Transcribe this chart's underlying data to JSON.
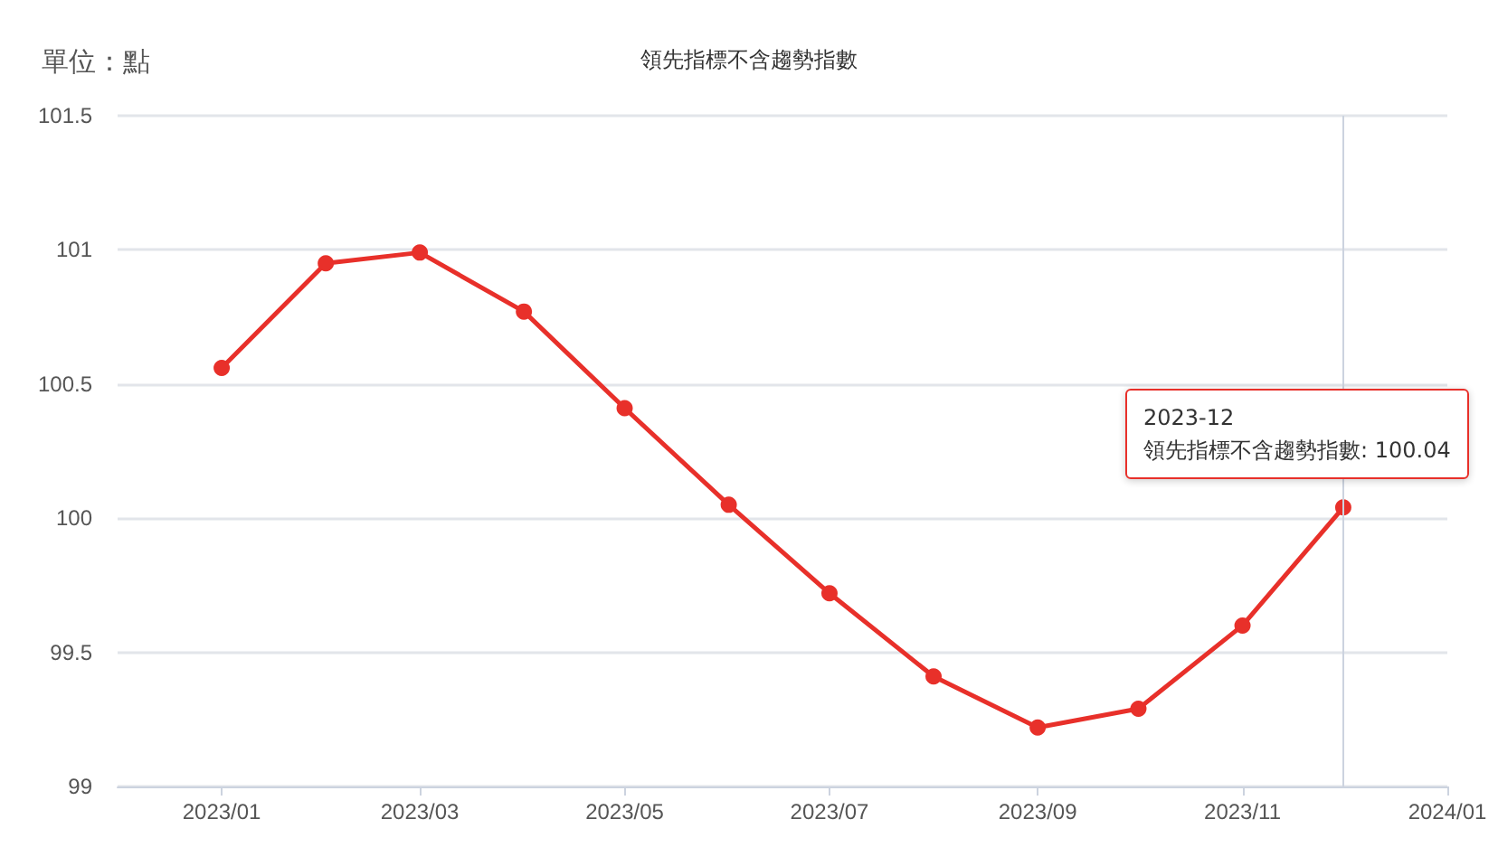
{
  "chart_data": {
    "type": "line",
    "title": "領先指標不含趨勢指數",
    "ylabel": "單位：點",
    "x": [
      "2023-01",
      "2023-02",
      "2023-03",
      "2023-04",
      "2023-05",
      "2023-06",
      "2023-07",
      "2023-08",
      "2023-09",
      "2023-10",
      "2023-11",
      "2023-12"
    ],
    "series": [
      {
        "color": "#e8302a",
        "values": [
          100.56,
          100.95,
          100.99,
          100.77,
          100.41,
          100.05,
          99.72,
          99.41,
          99.22,
          99.29,
          99.6,
          100.04
        ]
      }
    ],
    "xlim": [
      "2022-12",
      "2024-01"
    ],
    "xticks": [
      {
        "value": "2023-01",
        "label": "2023/01"
      },
      {
        "value": "2023-03",
        "label": "2023/03"
      },
      {
        "value": "2023-05",
        "label": "2023/05"
      },
      {
        "value": "2023-07",
        "label": "2023/07"
      },
      {
        "value": "2023-09",
        "label": "2023/09"
      },
      {
        "value": "2023-11",
        "label": "2023/11"
      },
      {
        "value": "2024-01",
        "label": "2024/01"
      }
    ],
    "ylim": [
      99,
      101.5
    ],
    "yticks": [
      99,
      99.5,
      100,
      100.5,
      101,
      101.5
    ],
    "ref_lines": [
      {
        "axis": "x",
        "value": "2023-12",
        "color": "#ccd3df"
      }
    ],
    "annotations": [
      {
        "text": "2023-12\n領先指標不含趨勢指數: 100.04",
        "x": "2023-12",
        "y": 100.04
      }
    ],
    "grid": "y",
    "marker": "circle",
    "line_style": "solid"
  }
}
